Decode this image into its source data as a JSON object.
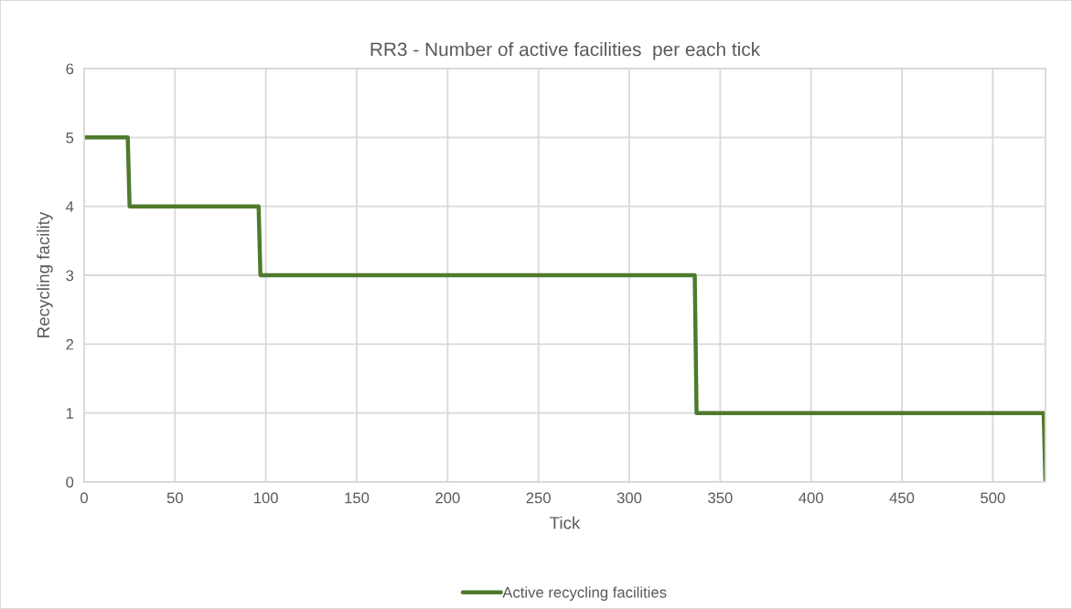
{
  "chart_data": {
    "type": "line",
    "title": "RR3 - Number of active facilities  per each tick",
    "xlabel": "Tick",
    "ylabel": "Recycling facility",
    "x": [
      0,
      24,
      25,
      96,
      97,
      336,
      337,
      528,
      529
    ],
    "series": [
      {
        "name": "Active recycling facilities",
        "color": "#4f7a2c",
        "values": [
          5,
          5,
          4,
          4,
          3,
          3,
          1,
          1,
          0
        ]
      }
    ],
    "xlim": [
      0,
      529
    ],
    "xticks": [
      0,
      50,
      100,
      150,
      200,
      250,
      300,
      350,
      400,
      450,
      500
    ],
    "ylim": [
      0,
      6
    ],
    "yticks": [
      0,
      1,
      2,
      3,
      4,
      5,
      6
    ],
    "grid": true,
    "legend": "bottom",
    "marker": "none",
    "line_style": "solid"
  }
}
